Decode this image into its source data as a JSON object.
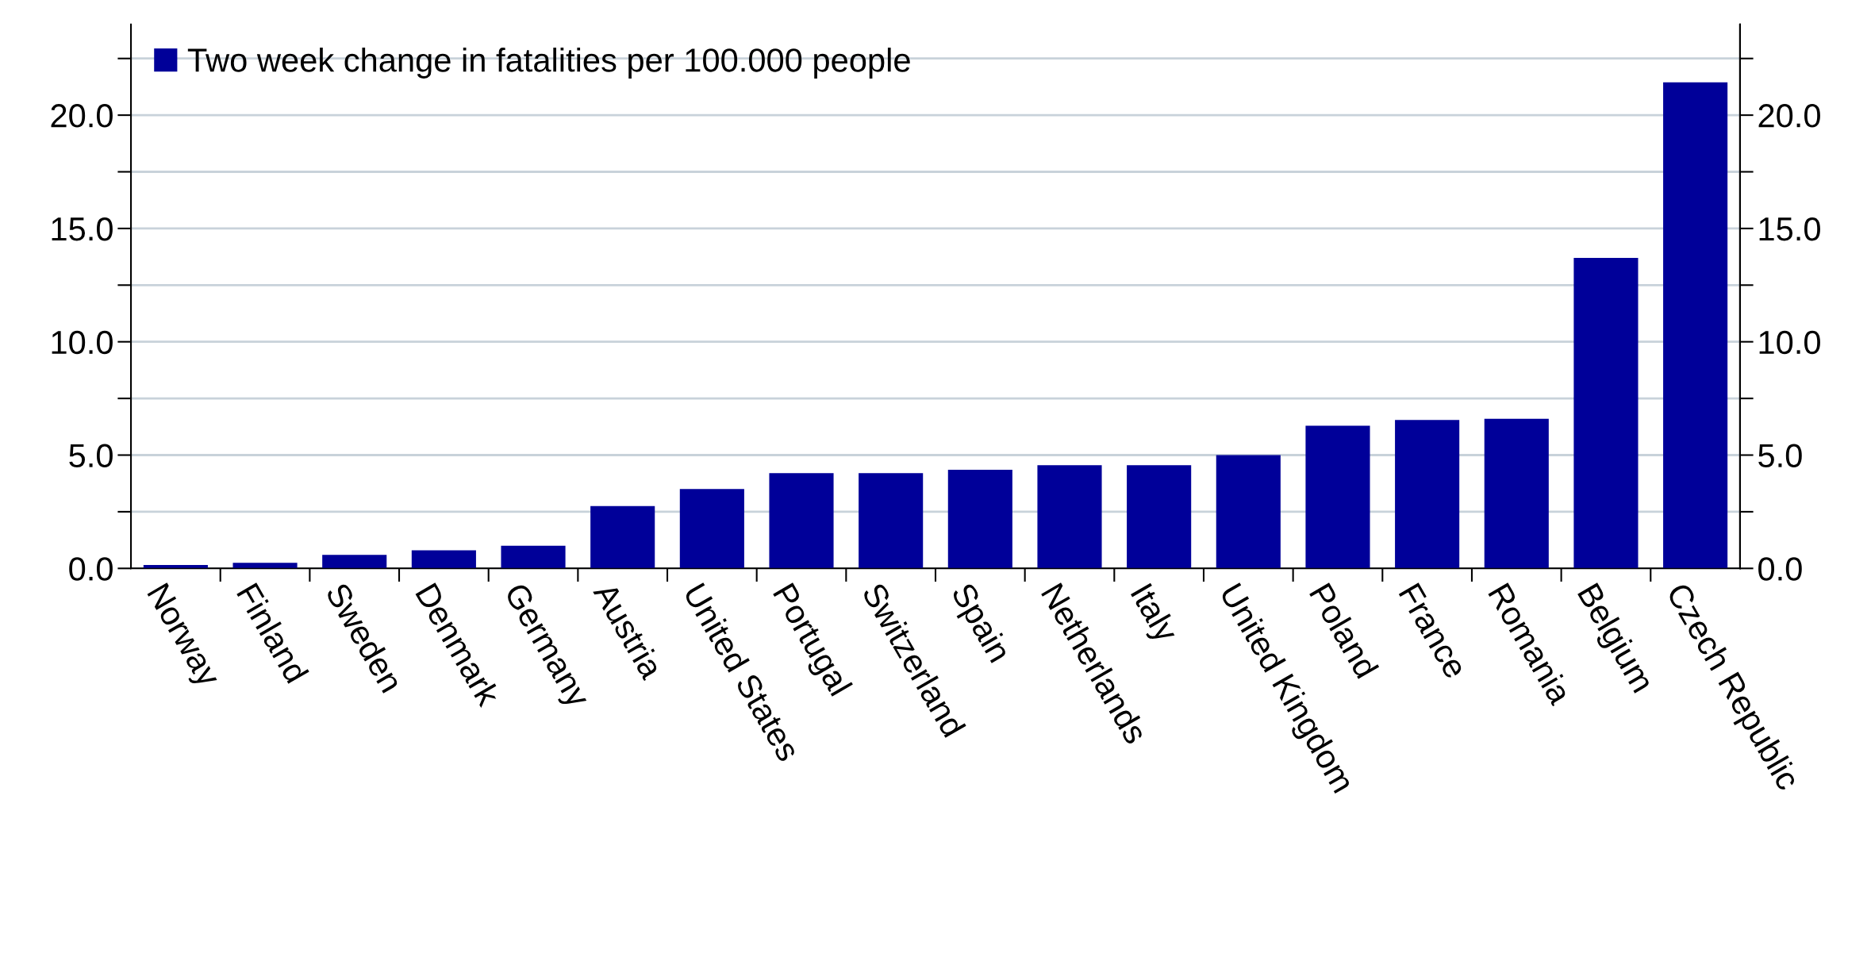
{
  "chart_data": {
    "type": "bar",
    "categories": [
      "Norway",
      "Finland",
      "Sweden",
      "Denmark",
      "Germany",
      "Austria",
      "United States",
      "Portugal",
      "Switzerland",
      "Spain",
      "Netherlands",
      "Italy",
      "United Kingdom",
      "Poland",
      "France",
      "Romania",
      "Belgium",
      "Czech Republic"
    ],
    "series": [
      {
        "name": "Two week change in fatalities per 100.000 people",
        "color": "#000099",
        "values": [
          0.15,
          0.25,
          0.6,
          0.8,
          1.0,
          2.75,
          3.5,
          4.2,
          4.2,
          4.35,
          4.55,
          4.55,
          5.0,
          6.3,
          6.55,
          6.6,
          13.7,
          21.45
        ]
      }
    ],
    "ylim": [
      0,
      24
    ],
    "yticks": [
      {
        "value": 0,
        "label": "0.0"
      },
      {
        "value": 2.5,
        "label": null
      },
      {
        "value": 5,
        "label": "5.0"
      },
      {
        "value": 7.5,
        "label": null
      },
      {
        "value": 10,
        "label": "10.0"
      },
      {
        "value": 12.5,
        "label": null
      },
      {
        "value": 15,
        "label": "15.0"
      },
      {
        "value": 17.5,
        "label": null
      },
      {
        "value": 20,
        "label": "20.0"
      },
      {
        "value": 22.5,
        "label": null
      }
    ],
    "y2lim": [
      0,
      24
    ],
    "y2ticks": [
      {
        "value": 0,
        "label": "0.0"
      },
      {
        "value": 2.5,
        "label": null
      },
      {
        "value": 5,
        "label": "5.0"
      },
      {
        "value": 7.5,
        "label": null
      },
      {
        "value": 10,
        "label": "10.0"
      },
      {
        "value": 12.5,
        "label": null
      },
      {
        "value": 15,
        "label": "15.0"
      },
      {
        "value": 17.5,
        "label": null
      },
      {
        "value": 20,
        "label": "20.0"
      },
      {
        "value": 22.5,
        "label": null
      }
    ],
    "grid": "y",
    "legend": "top left"
  }
}
